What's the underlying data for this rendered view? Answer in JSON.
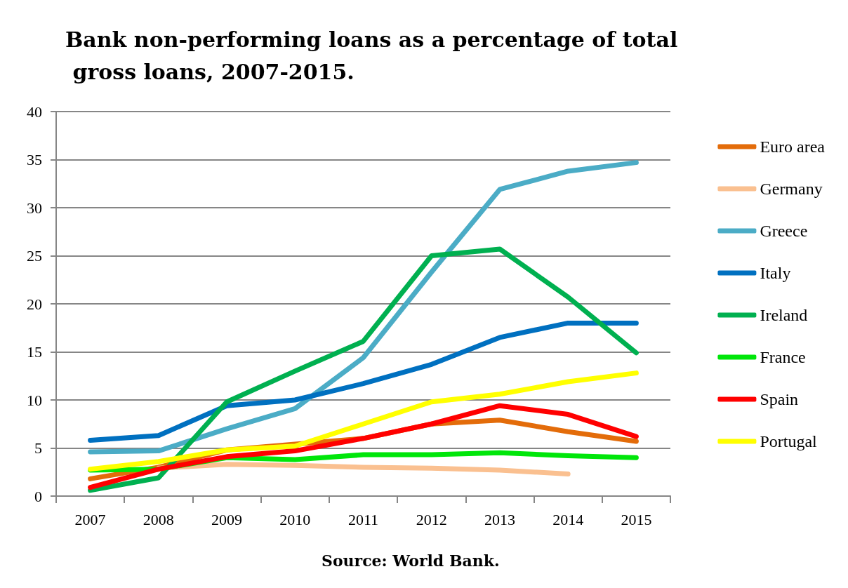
{
  "chart_data": {
    "type": "line",
    "title": "Bank non-performing loans as a percentage of total gross loans, 2007-2015.",
    "annotations": [
      "Source: World Bank."
    ],
    "categories": [
      "2007",
      "2008",
      "2009",
      "2010",
      "2011",
      "2012",
      "2013",
      "2014",
      "2015"
    ],
    "series": [
      {
        "name": "Euro area",
        "color": "#e36c0a",
        "values": [
          1.8,
          3.0,
          4.8,
          5.4,
          6.0,
          7.5,
          7.9,
          6.7,
          5.7
        ]
      },
      {
        "name": "Germany",
        "color": "#fac090",
        "values": [
          null,
          2.9,
          3.3,
          3.2,
          3.0,
          2.9,
          2.7,
          2.3,
          null
        ]
      },
      {
        "name": "Greece",
        "color": "#4bacc6",
        "values": [
          4.6,
          4.7,
          7.0,
          9.1,
          14.4,
          23.3,
          31.9,
          33.8,
          34.7
        ]
      },
      {
        "name": "Italy",
        "color": "#0070c0",
        "values": [
          5.8,
          6.3,
          9.4,
          10.0,
          11.7,
          13.7,
          16.5,
          18.0,
          18.0
        ]
      },
      {
        "name": "Ireland",
        "color": "#00b050",
        "values": [
          0.6,
          1.9,
          9.8,
          13.0,
          16.1,
          25.0,
          25.7,
          20.7,
          14.9
        ]
      },
      {
        "name": "France",
        "color": "#00e60a",
        "values": [
          2.7,
          2.8,
          4.0,
          3.8,
          4.3,
          4.3,
          4.5,
          4.2,
          4.0
        ]
      },
      {
        "name": "Spain",
        "color": "#ff0000",
        "values": [
          0.9,
          2.8,
          4.1,
          4.7,
          6.0,
          7.5,
          9.4,
          8.5,
          6.2
        ]
      },
      {
        "name": "Portugal",
        "color": "#ffff00",
        "values": [
          2.8,
          3.6,
          4.8,
          5.2,
          7.5,
          9.8,
          10.6,
          11.9,
          12.8
        ]
      }
    ],
    "ylim": [
      0,
      40
    ],
    "yticks": [
      0,
      5,
      10,
      15,
      20,
      25,
      30,
      35,
      40
    ],
    "grid": "y",
    "legend": "right",
    "marker": "none",
    "line_style": "solid"
  }
}
